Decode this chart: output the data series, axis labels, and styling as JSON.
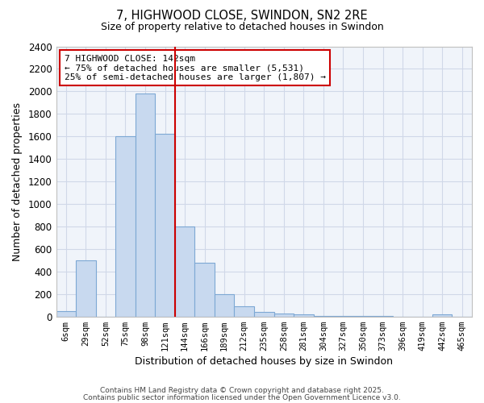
{
  "title1": "7, HIGHWOOD CLOSE, SWINDON, SN2 2RE",
  "title2": "Size of property relative to detached houses in Swindon",
  "xlabel": "Distribution of detached houses by size in Swindon",
  "ylabel": "Number of detached properties",
  "categories": [
    "6sqm",
    "29sqm",
    "52sqm",
    "75sqm",
    "98sqm",
    "121sqm",
    "144sqm",
    "166sqm",
    "189sqm",
    "212sqm",
    "235sqm",
    "258sqm",
    "281sqm",
    "304sqm",
    "327sqm",
    "350sqm",
    "373sqm",
    "396sqm",
    "419sqm",
    "442sqm",
    "465sqm"
  ],
  "values": [
    50,
    500,
    0,
    1600,
    1980,
    1620,
    800,
    480,
    200,
    90,
    40,
    30,
    20,
    5,
    3,
    3,
    2,
    1,
    0,
    20,
    0
  ],
  "bar_color": "#c8d9ef",
  "bar_edge_color": "#7da8d4",
  "vline_x": 6,
  "vline_color": "#cc0000",
  "annotation_text": "7 HIGHWOOD CLOSE: 142sqm\n← 75% of detached houses are smaller (5,531)\n25% of semi-detached houses are larger (1,807) →",
  "annotation_box_color": "#ffffff",
  "annotation_box_edge": "#cc0000",
  "ylim": [
    0,
    2400
  ],
  "yticks": [
    0,
    200,
    400,
    600,
    800,
    1000,
    1200,
    1400,
    1600,
    1800,
    2000,
    2200,
    2400
  ],
  "footer1": "Contains HM Land Registry data © Crown copyright and database right 2025.",
  "footer2": "Contains public sector information licensed under the Open Government Licence v3.0.",
  "plot_bg_color": "#f0f4fa",
  "fig_bg_color": "#ffffff",
  "grid_color": "#d0d8e8",
  "spine_color": "#c0c0c0"
}
